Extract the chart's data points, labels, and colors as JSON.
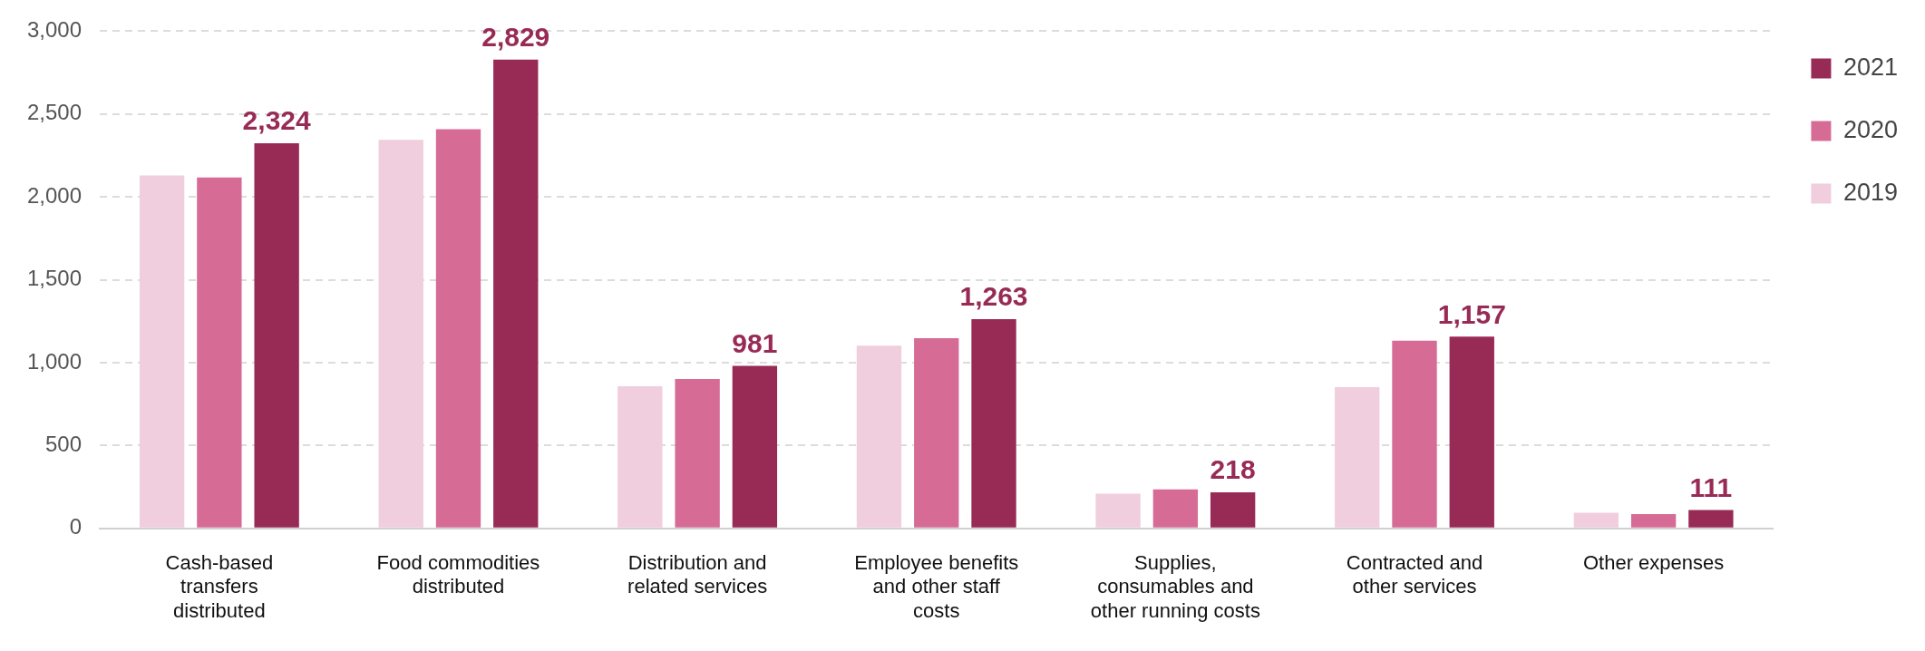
{
  "chart_data": {
    "type": "bar",
    "categories": [
      "Cash-based transfers distributed",
      "Food commodities distributed",
      "Distribution and related services",
      "Employee benefits and other staff costs",
      "Supplies, consumables and other running costs",
      "Contracted and other services",
      "Other expenses"
    ],
    "series": [
      {
        "name": "2019",
        "color": "#f0cedd",
        "values": [
          2130,
          2344,
          858,
          1103,
          210,
          852,
          95
        ]
      },
      {
        "name": "2020",
        "color": "#d66c95",
        "values": [
          2118,
          2408,
          902,
          1148,
          235,
          1132,
          86
        ]
      },
      {
        "name": "2021",
        "color": "#982b55",
        "values": [
          2324,
          2829,
          981,
          1263,
          218,
          1157,
          111
        ],
        "value_labels": [
          "2,324",
          "2,829",
          "981",
          "1,263",
          "218",
          "1,157",
          "111"
        ]
      }
    ],
    "ylim": [
      0,
      3000
    ],
    "yticks": [
      {
        "value": 0,
        "label": "0"
      },
      {
        "value": 500,
        "label": "500"
      },
      {
        "value": 1000,
        "label": "1,000"
      },
      {
        "value": 1500,
        "label": "1,500"
      },
      {
        "value": 2000,
        "label": "2,000"
      },
      {
        "value": 2500,
        "label": "2,500"
      },
      {
        "value": 3000,
        "label": "3,000"
      }
    ],
    "grid": "y",
    "legend": "top right"
  }
}
